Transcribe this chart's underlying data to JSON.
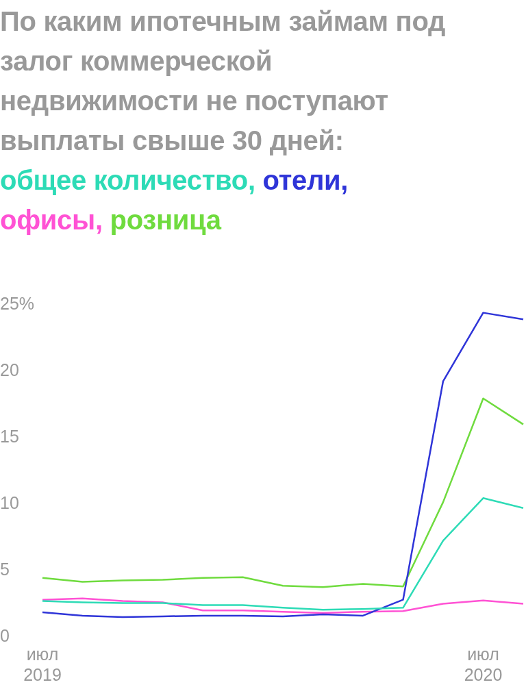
{
  "chart_data": {
    "type": "line",
    "title": "По каким ипотечным займам под залог коммерческой недвижимости не поступают выплаты свыше 30 дней:",
    "categories": [
      "июл 2019",
      null,
      null,
      null,
      null,
      null,
      null,
      null,
      null,
      null,
      null,
      "июл 2020",
      null
    ],
    "series": [
      {
        "name": "общее количество,",
        "color": "#2ddbb6",
        "values": [
          2.7,
          2.6,
          2.55,
          2.55,
          2.4,
          2.4,
          2.2,
          2.05,
          2.1,
          2.2,
          7.25,
          10.45,
          9.7
        ]
      },
      {
        "name": "отели,",
        "color": "#2f35d8",
        "values": [
          1.85,
          1.6,
          1.5,
          1.55,
          1.6,
          1.6,
          1.55,
          1.7,
          1.6,
          2.8,
          19.25,
          24.4,
          23.9
        ]
      },
      {
        "name": "офисы,",
        "color": "#ff52d4",
        "values": [
          2.8,
          2.9,
          2.7,
          2.6,
          2.0,
          2.0,
          1.9,
          1.8,
          1.9,
          1.95,
          2.5,
          2.75,
          2.5
        ]
      },
      {
        "name": "розница",
        "color": "#6fdb3e",
        "values": [
          4.45,
          4.15,
          4.25,
          4.3,
          4.45,
          4.5,
          3.85,
          3.75,
          4.0,
          3.8,
          10.15,
          17.95,
          16.0
        ]
      }
    ],
    "ylim": [
      0,
      25
    ],
    "yticks": [
      0,
      5,
      10,
      15,
      20,
      {
        "value": 25,
        "label": "25%"
      }
    ],
    "grid": false,
    "legend": "top",
    "marker": "none",
    "line_style": "solid"
  }
}
